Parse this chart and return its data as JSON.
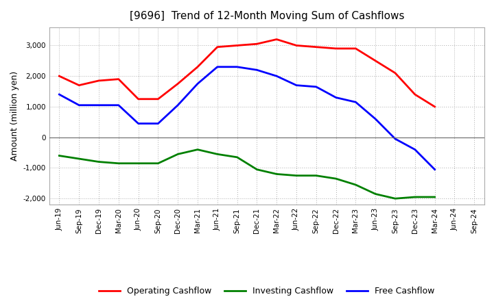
{
  "title": "[9696]  Trend of 12-Month Moving Sum of Cashflows",
  "ylabel": "Amount (million yen)",
  "xlabels": [
    "Jun-19",
    "Sep-19",
    "Dec-19",
    "Mar-20",
    "Jun-20",
    "Sep-20",
    "Dec-20",
    "Mar-21",
    "Jun-21",
    "Sep-21",
    "Dec-21",
    "Mar-22",
    "Jun-22",
    "Sep-22",
    "Dec-22",
    "Mar-23",
    "Jun-23",
    "Sep-23",
    "Dec-23",
    "Mar-24",
    "Jun-24",
    "Sep-24"
  ],
  "operating": [
    2000,
    1700,
    1850,
    1900,
    1250,
    1250,
    1750,
    2300,
    2950,
    3000,
    3050,
    3200,
    3000,
    2950,
    2900,
    2900,
    2500,
    2100,
    1400,
    1000,
    null,
    null
  ],
  "investing": [
    -600,
    -700,
    -800,
    -850,
    -850,
    -850,
    -550,
    -400,
    -550,
    -650,
    -1050,
    -1200,
    -1250,
    -1250,
    -1350,
    -1550,
    -1850,
    -2000,
    -1950,
    -1950,
    null,
    null
  ],
  "free": [
    1400,
    1050,
    1050,
    1050,
    450,
    450,
    1050,
    1750,
    2300,
    2300,
    2200,
    2000,
    1700,
    1650,
    1300,
    1150,
    600,
    -50,
    -400,
    -1050,
    null,
    null
  ],
  "operating_color": "#FF0000",
  "investing_color": "#008000",
  "free_color": "#0000FF",
  "bg_color": "#FFFFFF",
  "plot_bg_color": "#FFFFFF",
  "grid_color": "#AAAAAA",
  "ylim": [
    -2200,
    3600
  ],
  "yticks": [
    -2000,
    -1000,
    0,
    1000,
    2000,
    3000
  ],
  "title_fontsize": 11,
  "label_fontsize": 9,
  "tick_fontsize": 7.5,
  "legend_fontsize": 9
}
